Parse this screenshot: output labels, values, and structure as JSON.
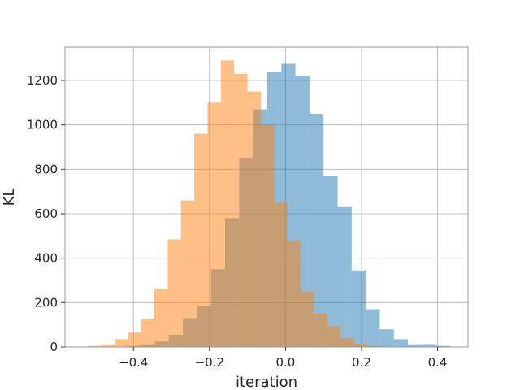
{
  "chart_data": {
    "type": "bar",
    "subtype": "overlaid-histogram",
    "title": "",
    "xlabel": "iteration",
    "ylabel": "KL",
    "xlim": [
      -0.58,
      0.48
    ],
    "ylim": [
      0,
      1350
    ],
    "grid": true,
    "legend": "none",
    "x_ticks": [
      -0.4,
      -0.2,
      0.0,
      0.2,
      0.4
    ],
    "x_tick_labels": [
      "−0.4",
      "−0.2",
      "0.0",
      "0.2",
      "0.4"
    ],
    "y_ticks": [
      0,
      200,
      400,
      600,
      800,
      1000,
      1200
    ],
    "y_tick_labels": [
      "0",
      "200",
      "400",
      "600",
      "800",
      "1000",
      "1200"
    ],
    "series": [
      {
        "color": "#1f77b4",
        "opacity": 0.5,
        "bin_edges": [
          -0.455,
          -0.418,
          -0.381,
          -0.344,
          -0.307,
          -0.27,
          -0.233,
          -0.196,
          -0.159,
          -0.122,
          -0.085,
          -0.048,
          -0.011,
          0.026,
          0.063,
          0.1,
          0.137,
          0.174,
          0.211,
          0.248,
          0.285,
          0.322,
          0.359,
          0.396,
          0.433,
          0.47
        ],
        "counts": [
          2,
          5,
          12,
          25,
          55,
          130,
          185,
          350,
          580,
          850,
          1070,
          1240,
          1275,
          1220,
          1050,
          770,
          630,
          345,
          170,
          80,
          35,
          12,
          13,
          5,
          0
        ]
      },
      {
        "color": "#ff7f0e",
        "opacity": 0.5,
        "bin_edges": [
          -0.555,
          -0.52,
          -0.485,
          -0.45,
          -0.415,
          -0.38,
          -0.345,
          -0.31,
          -0.275,
          -0.24,
          -0.205,
          -0.17,
          -0.135,
          -0.1,
          -0.065,
          -0.03,
          0.005,
          0.04,
          0.075,
          0.11,
          0.145,
          0.18,
          0.215,
          0.25
        ],
        "counts": [
          2,
          5,
          12,
          35,
          65,
          125,
          260,
          485,
          660,
          960,
          1100,
          1290,
          1230,
          1150,
          1000,
          650,
          480,
          250,
          150,
          95,
          40,
          15,
          5
        ]
      }
    ]
  }
}
